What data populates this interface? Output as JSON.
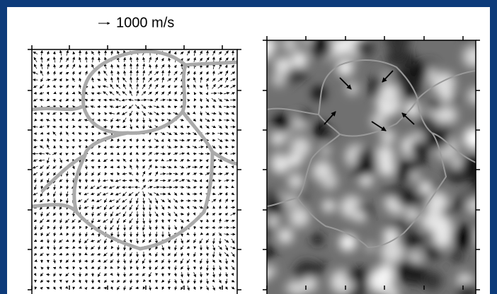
{
  "scale_label": "1000 m/s"
}
